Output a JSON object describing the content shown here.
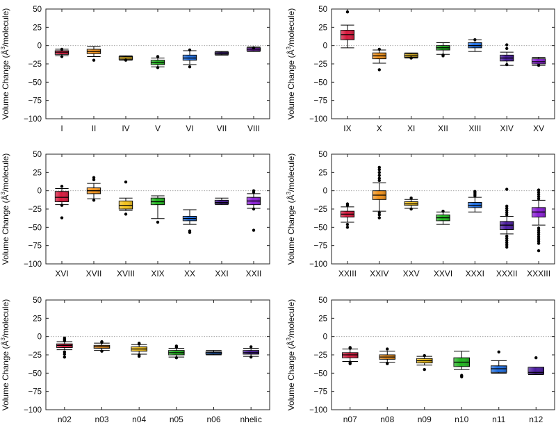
{
  "figure": {
    "ylabel_prefix": "Volume Change (Å",
    "ylabel_sup": "3",
    "ylabel_suffix": "/molecule)",
    "yticks": [
      50,
      25,
      0,
      -25,
      -50,
      -75,
      -100
    ]
  },
  "chart_data": [
    {
      "type": "box",
      "ylim": [
        -100,
        50
      ],
      "ylabel": "Volume Change (Å3/molecule)",
      "zero_line": true,
      "categories": [
        "I",
        "II",
        "IV",
        "V",
        "VI",
        "VII",
        "VIII"
      ],
      "boxes": [
        {
          "q1": -12,
          "median": -9,
          "q3": -7,
          "whisker_low": -14,
          "whisker_high": -5,
          "outliers": [
            -15,
            -5
          ],
          "color": "#d7193d"
        },
        {
          "q1": -11,
          "median": -8,
          "q3": -5,
          "whisker_low": -15,
          "whisker_high": -1,
          "outliers": [
            -20
          ],
          "color": "#f2921b"
        },
        {
          "q1": -19,
          "median": -17,
          "q3": -15,
          "whisker_low": -20,
          "whisker_high": -14,
          "outliers": [
            -20
          ],
          "color": "#f4c31e"
        },
        {
          "q1": -26,
          "median": -23,
          "q3": -20,
          "whisker_low": -29,
          "whisker_high": -17,
          "outliers": [
            -30,
            -15
          ],
          "color": "#20b51e"
        },
        {
          "q1": -20,
          "median": -17,
          "q3": -13,
          "whisker_low": -26,
          "whisker_high": -7,
          "outliers": [
            -29,
            -6
          ],
          "color": "#1f6fe3"
        },
        {
          "q1": -12,
          "median": -11,
          "q3": -9,
          "whisker_low": -13,
          "whisker_high": -8,
          "outliers": [],
          "color": "#4a1c9e"
        },
        {
          "q1": -7,
          "median": -5,
          "q3": -3,
          "whisker_low": -8,
          "whisker_high": -2,
          "outliers": [
            -3
          ],
          "color": "#8a1fd6"
        }
      ]
    },
    {
      "type": "box",
      "ylim": [
        -100,
        50
      ],
      "ylabel": "Volume Change (Å3/molecule)",
      "zero_line": true,
      "categories": [
        "IX",
        "X",
        "XI",
        "XII",
        "XIII",
        "XIV",
        "XV"
      ],
      "boxes": [
        {
          "q1": 8,
          "median": 15,
          "q3": 21,
          "whisker_low": -3,
          "whisker_high": 28,
          "outliers": [
            46
          ],
          "color": "#d7193d"
        },
        {
          "q1": -18,
          "median": -14,
          "q3": -10,
          "whisker_low": -24,
          "whisker_high": -6,
          "outliers": [
            -33,
            -5
          ],
          "color": "#f2921b"
        },
        {
          "q1": -16,
          "median": -14,
          "q3": -11,
          "whisker_low": -17,
          "whisker_high": -10,
          "outliers": [
            -17
          ],
          "color": "#c9a21c"
        },
        {
          "q1": -6,
          "median": -3,
          "q3": 0,
          "whisker_low": -12,
          "whisker_high": 4,
          "outliers": [
            -14,
            -13
          ],
          "color": "#20b51e"
        },
        {
          "q1": -3,
          "median": 0,
          "q3": 4,
          "whisker_low": -8,
          "whisker_high": 8,
          "outliers": [
            8
          ],
          "color": "#1f6fe3"
        },
        {
          "q1": -21,
          "median": -17,
          "q3": -13,
          "whisker_low": -27,
          "whisker_high": -9,
          "outliers": [
            -26,
            -4,
            1
          ],
          "color": "#4a1c9e"
        },
        {
          "q1": -25,
          "median": -22,
          "q3": -18,
          "whisker_low": -27,
          "whisker_high": -16,
          "outliers": [
            -27
          ],
          "color": "#8a1fd6"
        }
      ]
    },
    {
      "type": "box",
      "ylim": [
        -100,
        50
      ],
      "ylabel": "Volume Change (Å3/molecule)",
      "zero_line": true,
      "categories": [
        "XVI",
        "XVII",
        "XVIII",
        "XIX",
        "XX",
        "XXI",
        "XXII"
      ],
      "boxes": [
        {
          "q1": -15,
          "median": -9,
          "q3": -1,
          "whisker_low": -19,
          "whisker_high": 3,
          "outliers": [
            -37,
            -20,
            6
          ],
          "color": "#d7193d"
        },
        {
          "q1": -4,
          "median": 0,
          "q3": 4,
          "whisker_low": -11,
          "whisker_high": 10,
          "outliers": [
            -13,
            15,
            18
          ],
          "color": "#f2921b"
        },
        {
          "q1": -25,
          "median": -20,
          "q3": -14,
          "whisker_low": -27,
          "whisker_high": -10,
          "outliers": [
            -32,
            12
          ],
          "color": "#f4c31e"
        },
        {
          "q1": -19,
          "median": -15,
          "q3": -10,
          "whisker_low": -38,
          "whisker_high": -7,
          "outliers": [
            -43
          ],
          "color": "#20b51e"
        },
        {
          "q1": -41,
          "median": -38,
          "q3": -35,
          "whisker_low": -46,
          "whisker_high": -26,
          "outliers": [
            -57,
            -55
          ],
          "color": "#1f6fe3"
        },
        {
          "q1": -18,
          "median": -16,
          "q3": -13,
          "whisker_low": -19,
          "whisker_high": -10,
          "outliers": [],
          "color": "#4a1c9e"
        },
        {
          "q1": -19,
          "median": -14,
          "q3": -9,
          "whisker_low": -24,
          "whisker_high": -4,
          "outliers": [
            -54,
            -25,
            -2,
            0
          ],
          "color": "#8a1fd6"
        }
      ]
    },
    {
      "type": "box",
      "ylim": [
        -100,
        50
      ],
      "ylabel": "Volume Change (Å3/molecule)",
      "zero_line": true,
      "categories": [
        "XXIII",
        "XXIV",
        "XXV",
        "XXVI",
        "XXXI",
        "XXXII",
        "XXXIII"
      ],
      "boxes": [
        {
          "q1": -36,
          "median": -32,
          "q3": -28,
          "whisker_low": -43,
          "whisker_high": -22,
          "outliers": [
            -50,
            -46,
            -20,
            -18
          ],
          "color": "#d7193d"
        },
        {
          "q1": -12,
          "median": -6,
          "q3": 0,
          "whisker_low": -28,
          "whisker_high": 11,
          "outliers": [
            -37,
            -33,
            -30,
            14,
            17,
            21,
            25,
            29,
            32
          ],
          "color": "#f2921b"
        },
        {
          "q1": -20,
          "median": -18,
          "q3": -15,
          "whisker_low": -24,
          "whisker_high": -12,
          "outliers": [
            -25,
            -10
          ],
          "color": "#f4c31e"
        },
        {
          "q1": -41,
          "median": -37,
          "q3": -33,
          "whisker_low": -46,
          "whisker_high": -29,
          "outliers": [
            -28
          ],
          "color": "#20b51e"
        },
        {
          "q1": -23,
          "median": -20,
          "q3": -16,
          "whisker_low": -29,
          "whisker_high": -9,
          "outliers": [
            -7,
            -5,
            -3,
            -1
          ],
          "color": "#1f6fe3"
        },
        {
          "q1": -53,
          "median": -47,
          "q3": -42,
          "whisker_low": -59,
          "whisker_high": -35,
          "outliers": [
            -77,
            -74,
            -71,
            -68,
            -65,
            -62,
            -33,
            -30,
            -27,
            -24,
            -21,
            2
          ],
          "color": "#4a1c9e"
        },
        {
          "q1": -36,
          "median": -29,
          "q3": -23,
          "whisker_low": -47,
          "whisker_high": -13,
          "outliers": [
            -82,
            -72,
            -69,
            -66,
            -63,
            -60,
            -57,
            -54,
            -51,
            -11,
            -8,
            -5,
            -2,
            1
          ],
          "color": "#8a1fd6"
        }
      ]
    },
    {
      "type": "box",
      "ylim": [
        -100,
        50
      ],
      "ylabel": "Volume Change (Å3/molecule)",
      "zero_line": true,
      "categories": [
        "n02",
        "n03",
        "n04",
        "n05",
        "n06",
        "nhelic"
      ],
      "boxes": [
        {
          "q1": -15,
          "median": -12,
          "q3": -10,
          "whisker_low": -18,
          "whisker_high": -7,
          "outliers": [
            -28,
            -24,
            -21,
            -6,
            -4,
            -2
          ],
          "color": "#d7193d"
        },
        {
          "q1": -16,
          "median": -14,
          "q3": -12,
          "whisker_low": -19,
          "whisker_high": -9,
          "outliers": [
            -20,
            -8,
            -7
          ],
          "color": "#f2921b"
        },
        {
          "q1": -20,
          "median": -17,
          "q3": -14,
          "whisker_low": -24,
          "whisker_high": -11,
          "outliers": [
            -27,
            -25,
            -10,
            -9
          ],
          "color": "#f4c31e"
        },
        {
          "q1": -25,
          "median": -22,
          "q3": -19,
          "whisker_low": -28,
          "whisker_high": -16,
          "outliers": [
            -29,
            -15,
            -13
          ],
          "color": "#20b51e"
        },
        {
          "q1": -24,
          "median": -22,
          "q3": -21,
          "whisker_low": -25,
          "whisker_high": -19,
          "outliers": [],
          "color": "#1f6fe3"
        },
        {
          "q1": -24,
          "median": -22,
          "q3": -19,
          "whisker_low": -27,
          "whisker_high": -16,
          "outliers": [
            -28,
            -14
          ],
          "color": "#4a1c9e"
        }
      ]
    },
    {
      "type": "box",
      "ylim": [
        -100,
        50
      ],
      "ylabel": "Volume Change (Å3/molecule)",
      "zero_line": true,
      "categories": [
        "n07",
        "n08",
        "n09",
        "n10",
        "n11",
        "n12"
      ],
      "boxes": [
        {
          "q1": -29,
          "median": -25,
          "q3": -22,
          "whisker_low": -34,
          "whisker_high": -17,
          "outliers": [
            -37,
            -35,
            -16,
            -15
          ],
          "color": "#d7193d"
        },
        {
          "q1": -31,
          "median": -28,
          "q3": -25,
          "whisker_low": -35,
          "whisker_high": -20,
          "outliers": [
            -37,
            -17
          ],
          "color": "#f2921b"
        },
        {
          "q1": -36,
          "median": -33,
          "q3": -30,
          "whisker_low": -39,
          "whisker_high": -27,
          "outliers": [
            -45,
            -26
          ],
          "color": "#f4c31e"
        },
        {
          "q1": -41,
          "median": -35,
          "q3": -29,
          "whisker_low": -45,
          "whisker_high": -20,
          "outliers": [
            -55,
            -53
          ],
          "color": "#20b51e"
        },
        {
          "q1": -49,
          "median": -44,
          "q3": -40,
          "whisker_low": -50,
          "whisker_high": -33,
          "outliers": [
            -21
          ],
          "color": "#1f6fe3"
        },
        {
          "q1": -51,
          "median": -49,
          "q3": -42,
          "whisker_low": -52,
          "whisker_high": -42,
          "outliers": [
            -29
          ],
          "color": "#4a1c9e"
        }
      ]
    }
  ]
}
